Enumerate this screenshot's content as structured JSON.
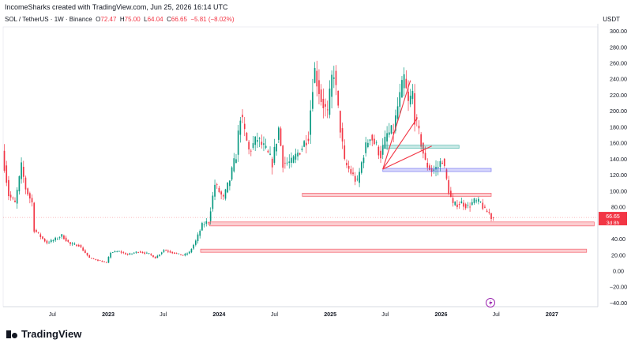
{
  "header": {
    "attribution": "IncomeSharks created with TradingView.com, Jun 25, 2026 16:14 UTC"
  },
  "symbol": {
    "name": "SOL / TetherUS · 1W · Binance",
    "o_label": "O",
    "o": "72.47",
    "h_label": "H",
    "h": "75.00",
    "l_label": "L",
    "l": "64.04",
    "c_label": "C",
    "c": "66.65",
    "change": "−5.81 (−8.02%)"
  },
  "currency": "USDT",
  "last_price": {
    "value": "66.65",
    "countdown": "3d 8h"
  },
  "logo_text": "TradingView",
  "colors": {
    "up": "#089981",
    "down": "#f23645",
    "zone_red": "#f23645",
    "zone_teal": "#26a69a",
    "zone_blue": "#5b5bf0"
  },
  "chart_data": {
    "type": "candlestick",
    "y_ticks": [
      300,
      280,
      260,
      240,
      220,
      200,
      180,
      160,
      140,
      120,
      100,
      80,
      60,
      40,
      20,
      0,
      -20,
      -40
    ],
    "y_tick_labels": [
      "300.00",
      "280.00",
      "260.00",
      "240.00",
      "220.00",
      "200.00",
      "180.00",
      "160.00",
      "140.00",
      "120.00",
      "100.00",
      "80.00",
      "60.00",
      "40.00",
      "20.00",
      "0.00",
      "−20.00",
      "−40.00"
    ],
    "ylim": [
      -45,
      305
    ],
    "x_ticks": [
      {
        "label": "Jul",
        "date": "2022-07-01"
      },
      {
        "label": "2023",
        "date": "2023-01-01"
      },
      {
        "label": "Jul",
        "date": "2023-07-01"
      },
      {
        "label": "2024",
        "date": "2024-01-01"
      },
      {
        "label": "Jul",
        "date": "2024-07-01"
      },
      {
        "label": "2025",
        "date": "2025-01-01"
      },
      {
        "label": "Jul",
        "date": "2025-07-01"
      },
      {
        "label": "2026",
        "date": "2026-01-01"
      },
      {
        "label": "Jul",
        "date": "2026-07-01"
      },
      {
        "label": "2027",
        "date": "2027-01-01"
      }
    ],
    "x_range": [
      "2022-01-20",
      "2027-06-01"
    ],
    "price_path": [
      [
        "2022-01-24",
        150
      ],
      [
        "2022-02-14",
        95
      ],
      [
        "2022-03-07",
        84
      ],
      [
        "2022-03-28",
        130
      ],
      [
        "2022-04-11",
        103
      ],
      [
        "2022-05-02",
        85
      ],
      [
        "2022-05-09",
        51
      ],
      [
        "2022-06-06",
        40
      ],
      [
        "2022-06-20",
        35
      ],
      [
        "2022-07-11",
        38
      ],
      [
        "2022-08-08",
        44
      ],
      [
        "2022-09-05",
        33
      ],
      [
        "2022-10-03",
        32
      ],
      [
        "2022-11-07",
        16
      ],
      [
        "2022-12-05",
        13
      ],
      [
        "2023-01-02",
        10
      ],
      [
        "2023-01-16",
        23
      ],
      [
        "2023-02-13",
        24
      ],
      [
        "2023-03-13",
        20
      ],
      [
        "2023-04-17",
        24
      ],
      [
        "2023-05-22",
        21
      ],
      [
        "2023-06-12",
        16
      ],
      [
        "2023-07-10",
        26
      ],
      [
        "2023-08-14",
        22
      ],
      [
        "2023-09-11",
        19
      ],
      [
        "2023-10-02",
        23
      ],
      [
        "2023-10-23",
        37
      ],
      [
        "2023-11-13",
        57
      ],
      [
        "2023-12-04",
        62
      ],
      [
        "2023-12-25",
        108
      ],
      [
        "2024-01-22",
        90
      ],
      [
        "2024-02-12",
        114
      ],
      [
        "2024-03-04",
        145
      ],
      [
        "2024-03-18",
        195
      ],
      [
        "2024-04-15",
        150
      ],
      [
        "2024-05-13",
        165
      ],
      [
        "2024-06-10",
        150
      ],
      [
        "2024-07-01",
        135
      ],
      [
        "2024-07-22",
        178
      ],
      [
        "2024-08-05",
        135
      ],
      [
        "2024-09-02",
        135
      ],
      [
        "2024-10-07",
        155
      ],
      [
        "2024-10-28",
        170
      ],
      [
        "2024-11-11",
        235
      ],
      [
        "2024-11-18",
        250
      ],
      [
        "2024-12-09",
        215
      ],
      [
        "2024-12-30",
        195
      ],
      [
        "2025-01-13",
        240
      ],
      [
        "2025-01-20",
        250
      ],
      [
        "2025-02-03",
        200
      ],
      [
        "2025-02-24",
        135
      ],
      [
        "2025-03-10",
        127
      ],
      [
        "2025-04-07",
        110
      ],
      [
        "2025-04-28",
        147
      ],
      [
        "2025-05-19",
        170
      ],
      [
        "2025-06-09",
        155
      ],
      [
        "2025-06-23",
        145
      ],
      [
        "2025-07-14",
        170
      ],
      [
        "2025-08-04",
        175
      ],
      [
        "2025-08-18",
        205
      ],
      [
        "2025-09-08",
        240
      ],
      [
        "2025-09-22",
        208
      ],
      [
        "2025-10-06",
        222
      ],
      [
        "2025-10-13",
        192
      ],
      [
        "2025-11-03",
        160
      ],
      [
        "2025-11-17",
        135
      ],
      [
        "2025-12-08",
        125
      ],
      [
        "2025-12-29",
        130
      ],
      [
        "2026-01-12",
        140
      ],
      [
        "2026-02-02",
        100
      ],
      [
        "2026-02-16",
        82
      ],
      [
        "2026-03-16",
        85
      ],
      [
        "2026-04-06",
        80
      ],
      [
        "2026-04-27",
        87
      ],
      [
        "2026-05-18",
        85
      ],
      [
        "2026-06-01",
        75
      ],
      [
        "2026-06-15",
        72
      ],
      [
        "2026-06-22",
        66.65
      ]
    ],
    "zones": [
      {
        "color": "red",
        "start": "2024-10-01",
        "end": "2026-06-15",
        "low": 93,
        "high": 97
      },
      {
        "color": "teal",
        "start": "2025-06-23",
        "end": "2026-03-01",
        "low": 153,
        "high": 157
      },
      {
        "color": "blue",
        "start": "2025-06-23",
        "end": "2026-06-15",
        "low": 124,
        "high": 128
      },
      {
        "color": "red",
        "start": "2023-12-01",
        "end": "2027-05-20",
        "low": 56,
        "high": 61
      },
      {
        "color": "red",
        "start": "2023-11-01",
        "end": "2027-04-25",
        "low": 23,
        "high": 27
      }
    ],
    "fan_origin": [
      "2025-06-23",
      127
    ],
    "fan_targets": [
      [
        "2025-09-22",
        238
      ],
      [
        "2025-10-13",
        190
      ],
      [
        "2025-12-01",
        156
      ]
    ]
  }
}
